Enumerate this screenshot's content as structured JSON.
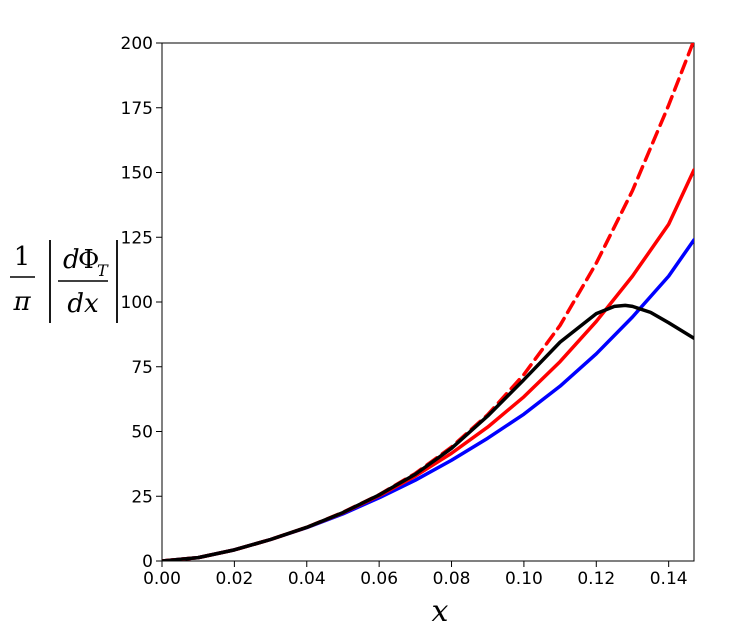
{
  "chart_data": {
    "type": "line",
    "title": "",
    "xlabel": "x",
    "ylabel": {
      "fraction_num": "1",
      "fraction_den": "π",
      "deriv_d_top": "d",
      "deriv_phi": "Φ",
      "deriv_sub": "T",
      "deriv_den": "dx"
    },
    "xlim": [
      0,
      0.147
    ],
    "ylim": [
      0,
      200
    ],
    "xticks": [
      0.0,
      0.02,
      0.04,
      0.06,
      0.08,
      0.1,
      0.12,
      0.14
    ],
    "xtick_labels": [
      "0.00",
      "0.02",
      "0.04",
      "0.06",
      "0.08",
      "0.10",
      "0.12",
      "0.14"
    ],
    "yticks": [
      0,
      25,
      50,
      75,
      100,
      125,
      150,
      175,
      200
    ],
    "ytick_labels": [
      "0",
      "25",
      "50",
      "75",
      "100",
      "125",
      "150",
      "175",
      "200"
    ],
    "grid": false,
    "legend": "none",
    "series": [
      {
        "color": "#0000ff",
        "style": "solid",
        "x": [
          0,
          0.01,
          0.02,
          0.03,
          0.04,
          0.05,
          0.06,
          0.07,
          0.08,
          0.09,
          0.1,
          0.11,
          0.12,
          0.13,
          0.14,
          0.147
        ],
        "values": [
          0,
          1.3,
          4.3,
          8.3,
          12.9,
          18.2,
          24.4,
          31.2,
          38.9,
          47.4,
          56.7,
          67.5,
          80.0,
          94.2,
          110.0,
          124.0
        ]
      },
      {
        "color": "#ff0000",
        "style": "solid",
        "x": [
          0,
          0.01,
          0.02,
          0.03,
          0.04,
          0.05,
          0.06,
          0.07,
          0.08,
          0.09,
          0.1,
          0.11,
          0.12,
          0.13,
          0.14,
          0.147
        ],
        "values": [
          0,
          1.3,
          4.3,
          8.3,
          13.0,
          18.6,
          25.2,
          32.8,
          41.6,
          51.7,
          63.4,
          77.0,
          92.5,
          110.0,
          130.0,
          151.0
        ]
      },
      {
        "color": "#ff0000",
        "style": "dashed",
        "x": [
          0,
          0.01,
          0.02,
          0.03,
          0.04,
          0.05,
          0.06,
          0.07,
          0.08,
          0.09,
          0.1,
          0.11,
          0.12,
          0.13,
          0.14,
          0.1467
        ],
        "values": [
          0,
          1.3,
          4.3,
          8.3,
          13.0,
          18.8,
          25.6,
          33.8,
          44.0,
          56.5,
          72.0,
          91.0,
          115.0,
          143.0,
          176.0,
          200.0
        ]
      },
      {
        "color": "#000000",
        "style": "solid",
        "x": [
          0,
          0.01,
          0.02,
          0.03,
          0.04,
          0.05,
          0.06,
          0.07,
          0.08,
          0.09,
          0.1,
          0.11,
          0.12,
          0.125,
          0.128,
          0.13,
          0.135,
          0.14,
          0.147
        ],
        "values": [
          0,
          1.3,
          4.3,
          8.3,
          13.0,
          18.7,
          25.5,
          33.5,
          43.5,
          56.0,
          70.0,
          84.5,
          95.5,
          98.3,
          98.7,
          98.3,
          96.0,
          92.0,
          86.0
        ]
      }
    ]
  }
}
